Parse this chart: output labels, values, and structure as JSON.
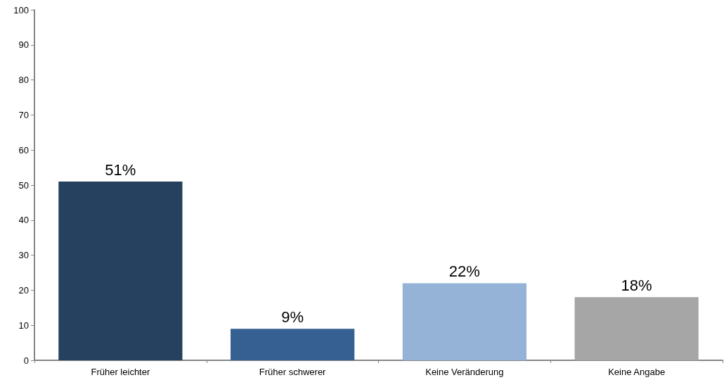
{
  "chart_data": {
    "type": "bar",
    "categories": [
      "Früher leichter",
      "Früher schwerer",
      "Keine Veränderung",
      "Keine Angabe"
    ],
    "values": [
      51,
      9,
      22,
      18
    ],
    "colors": [
      "#264060",
      "#376092",
      "#95b3d7",
      "#a6a6a6"
    ],
    "value_labels": [
      "51%",
      "9%",
      "22%",
      "18%"
    ],
    "ylim": [
      0,
      100
    ],
    "yticks": [
      0,
      10,
      20,
      30,
      40,
      50,
      60,
      70,
      80,
      90,
      100
    ]
  }
}
